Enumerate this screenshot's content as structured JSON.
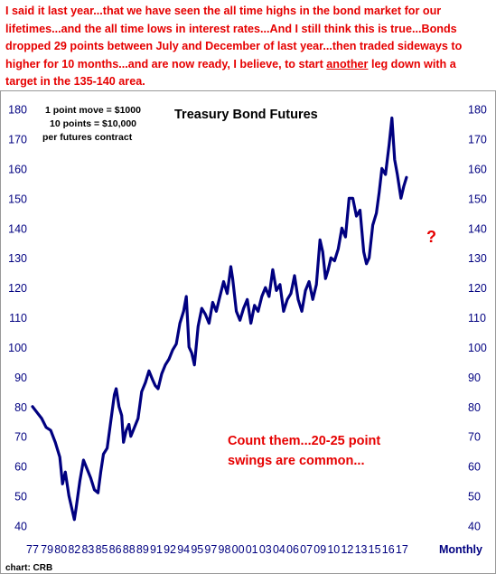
{
  "headline": {
    "before": "I said it last year...that we have seen the all time highs in the bond market for our lifetimes...and the all time lows in interest rates...And I still think this is true...Bonds dropped 29 points between July and December of last year...then traded sideways to higher for 10 months...and are now ready, I believe, to start ",
    "emphasis": "another",
    "after": " leg down with a target in the 135-140 area."
  },
  "chart_data": {
    "type": "line",
    "title": "Treasury Bond Futures",
    "xlabel": "Monthly",
    "ylabel": "",
    "ylim": [
      38,
      182
    ],
    "xlim": [
      1977.0,
      2019.8
    ],
    "y_ticks": [
      40,
      50,
      60,
      70,
      80,
      90,
      100,
      110,
      120,
      130,
      140,
      150,
      160,
      170,
      180
    ],
    "x_tick_labels": [
      "77",
      "79",
      "80",
      "82",
      "83",
      "85",
      "86",
      "88",
      "89",
      "91",
      "92",
      "94",
      "95",
      "97",
      "98",
      "00",
      "01",
      "03",
      "04",
      "06",
      "07",
      "09",
      "10",
      "12",
      "13",
      "15",
      "16",
      "17"
    ],
    "x_tick_years": [
      1977.0,
      1978.6,
      1980.1,
      1981.6,
      1983.1,
      1984.6,
      1986.1,
      1987.6,
      1989.1,
      1990.6,
      1992.1,
      1993.6,
      1995.1,
      1996.6,
      1998.1,
      1999.6,
      2001.1,
      2002.6,
      2004.1,
      2005.6,
      2007.1,
      2008.6,
      2010.1,
      2011.6,
      2013.1,
      2014.6,
      2016.1,
      2017.6
    ],
    "series": [
      {
        "color": "#000080",
        "x": [
          1977.0,
          1977.5,
          1978.0,
          1978.5,
          1979.0,
          1979.5,
          1980.0,
          1980.3,
          1980.6,
          1981.0,
          1981.3,
          1981.6,
          1981.8,
          1982.2,
          1982.6,
          1983.0,
          1983.4,
          1983.8,
          1984.2,
          1984.5,
          1984.8,
          1985.2,
          1985.6,
          1986.0,
          1986.2,
          1986.5,
          1986.8,
          1987.0,
          1987.3,
          1987.6,
          1987.8,
          1988.2,
          1988.6,
          1989.0,
          1989.4,
          1989.8,
          1990.2,
          1990.5,
          1990.8,
          1991.2,
          1991.6,
          1992.0,
          1992.4,
          1992.8,
          1993.2,
          1993.6,
          1993.9,
          1994.2,
          1994.5,
          1994.8,
          1995.2,
          1995.6,
          1996.0,
          1996.4,
          1996.8,
          1997.2,
          1997.6,
          1998.0,
          1998.4,
          1998.8,
          1999.0,
          1999.4,
          1999.8,
          2000.2,
          2000.6,
          2001.0,
          2001.4,
          2001.8,
          2002.2,
          2002.6,
          2003.0,
          2003.4,
          2003.8,
          2004.2,
          2004.6,
          2005.0,
          2005.4,
          2005.8,
          2006.2,
          2006.6,
          2007.0,
          2007.4,
          2007.8,
          2008.2,
          2008.6,
          2008.9,
          2009.2,
          2009.5,
          2009.8,
          2010.2,
          2010.6,
          2011.0,
          2011.4,
          2011.8,
          2012.2,
          2012.6,
          2013.0,
          2013.4,
          2013.7,
          2014.0,
          2014.4,
          2014.8,
          2015.1,
          2015.4,
          2015.8,
          2016.2,
          2016.5,
          2016.8,
          2017.1,
          2017.5,
          2017.8,
          2018.1
        ],
        "y": [
          80,
          78,
          76,
          73,
          72,
          68,
          63,
          54,
          58,
          50,
          46,
          42,
          46,
          55,
          62,
          59,
          56,
          52,
          51,
          58,
          64,
          66,
          75,
          84,
          86,
          80,
          77,
          68,
          72,
          74,
          70,
          73,
          76,
          85,
          88,
          92,
          89,
          87,
          86,
          91,
          94,
          96,
          99,
          101,
          108,
          112,
          117,
          100,
          98,
          94,
          107,
          113,
          111,
          108,
          115,
          112,
          117,
          122,
          118,
          127,
          123,
          112,
          109,
          113,
          116,
          108,
          114,
          112,
          117,
          120,
          117,
          126,
          119,
          121,
          112,
          116,
          118,
          124,
          116,
          112,
          119,
          122,
          116,
          121,
          136,
          132,
          123,
          126,
          130,
          129,
          133,
          140,
          137,
          150,
          150,
          144,
          146,
          132,
          128,
          130,
          141,
          145,
          152,
          160,
          158,
          168,
          177,
          163,
          158,
          150,
          154,
          157
        ]
      }
    ],
    "annotations": [
      "1 point move = $1000",
      "10 points = $10,000",
      "per futures contract",
      "Count them...20-25 point",
      "swings are common...",
      "?"
    ],
    "source": "chart: CRB",
    "grid": false,
    "legend": "none"
  }
}
